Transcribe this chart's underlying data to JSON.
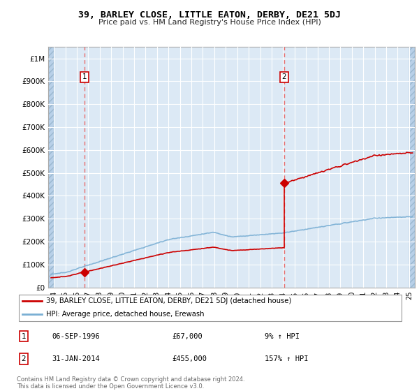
{
  "title": "39, BARLEY CLOSE, LITTLE EATON, DERBY, DE21 5DJ",
  "subtitle": "Price paid vs. HM Land Registry's House Price Index (HPI)",
  "xmin": 1993.5,
  "xmax": 2025.5,
  "ymin": 0,
  "ymax": 1050000,
  "plot_bg_color": "#dce9f5",
  "hatch_color": "#b8d0e8",
  "grid_color": "#ffffff",
  "sale1_date": 1996.68,
  "sale1_price": 67000,
  "sale1_label": "1",
  "sale2_date": 2014.08,
  "sale2_price": 455000,
  "sale2_label": "2",
  "sale1_date_str": "06-SEP-1996",
  "sale1_price_str": "£67,000",
  "sale1_hpi_str": "9% ↑ HPI",
  "sale2_date_str": "31-JAN-2014",
  "sale2_price_str": "£455,000",
  "sale2_hpi_str": "157% ↑ HPI",
  "legend_line1": "39, BARLEY CLOSE, LITTLE EATON, DERBY, DE21 5DJ (detached house)",
  "legend_line2": "HPI: Average price, detached house, Erewash",
  "footer": "Contains HM Land Registry data © Crown copyright and database right 2024.\nThis data is licensed under the Open Government Licence v3.0.",
  "property_line_color": "#cc0000",
  "hpi_line_color": "#7aafd4",
  "sale_marker_color": "#cc0000",
  "dashed_line_color": "#e87070"
}
